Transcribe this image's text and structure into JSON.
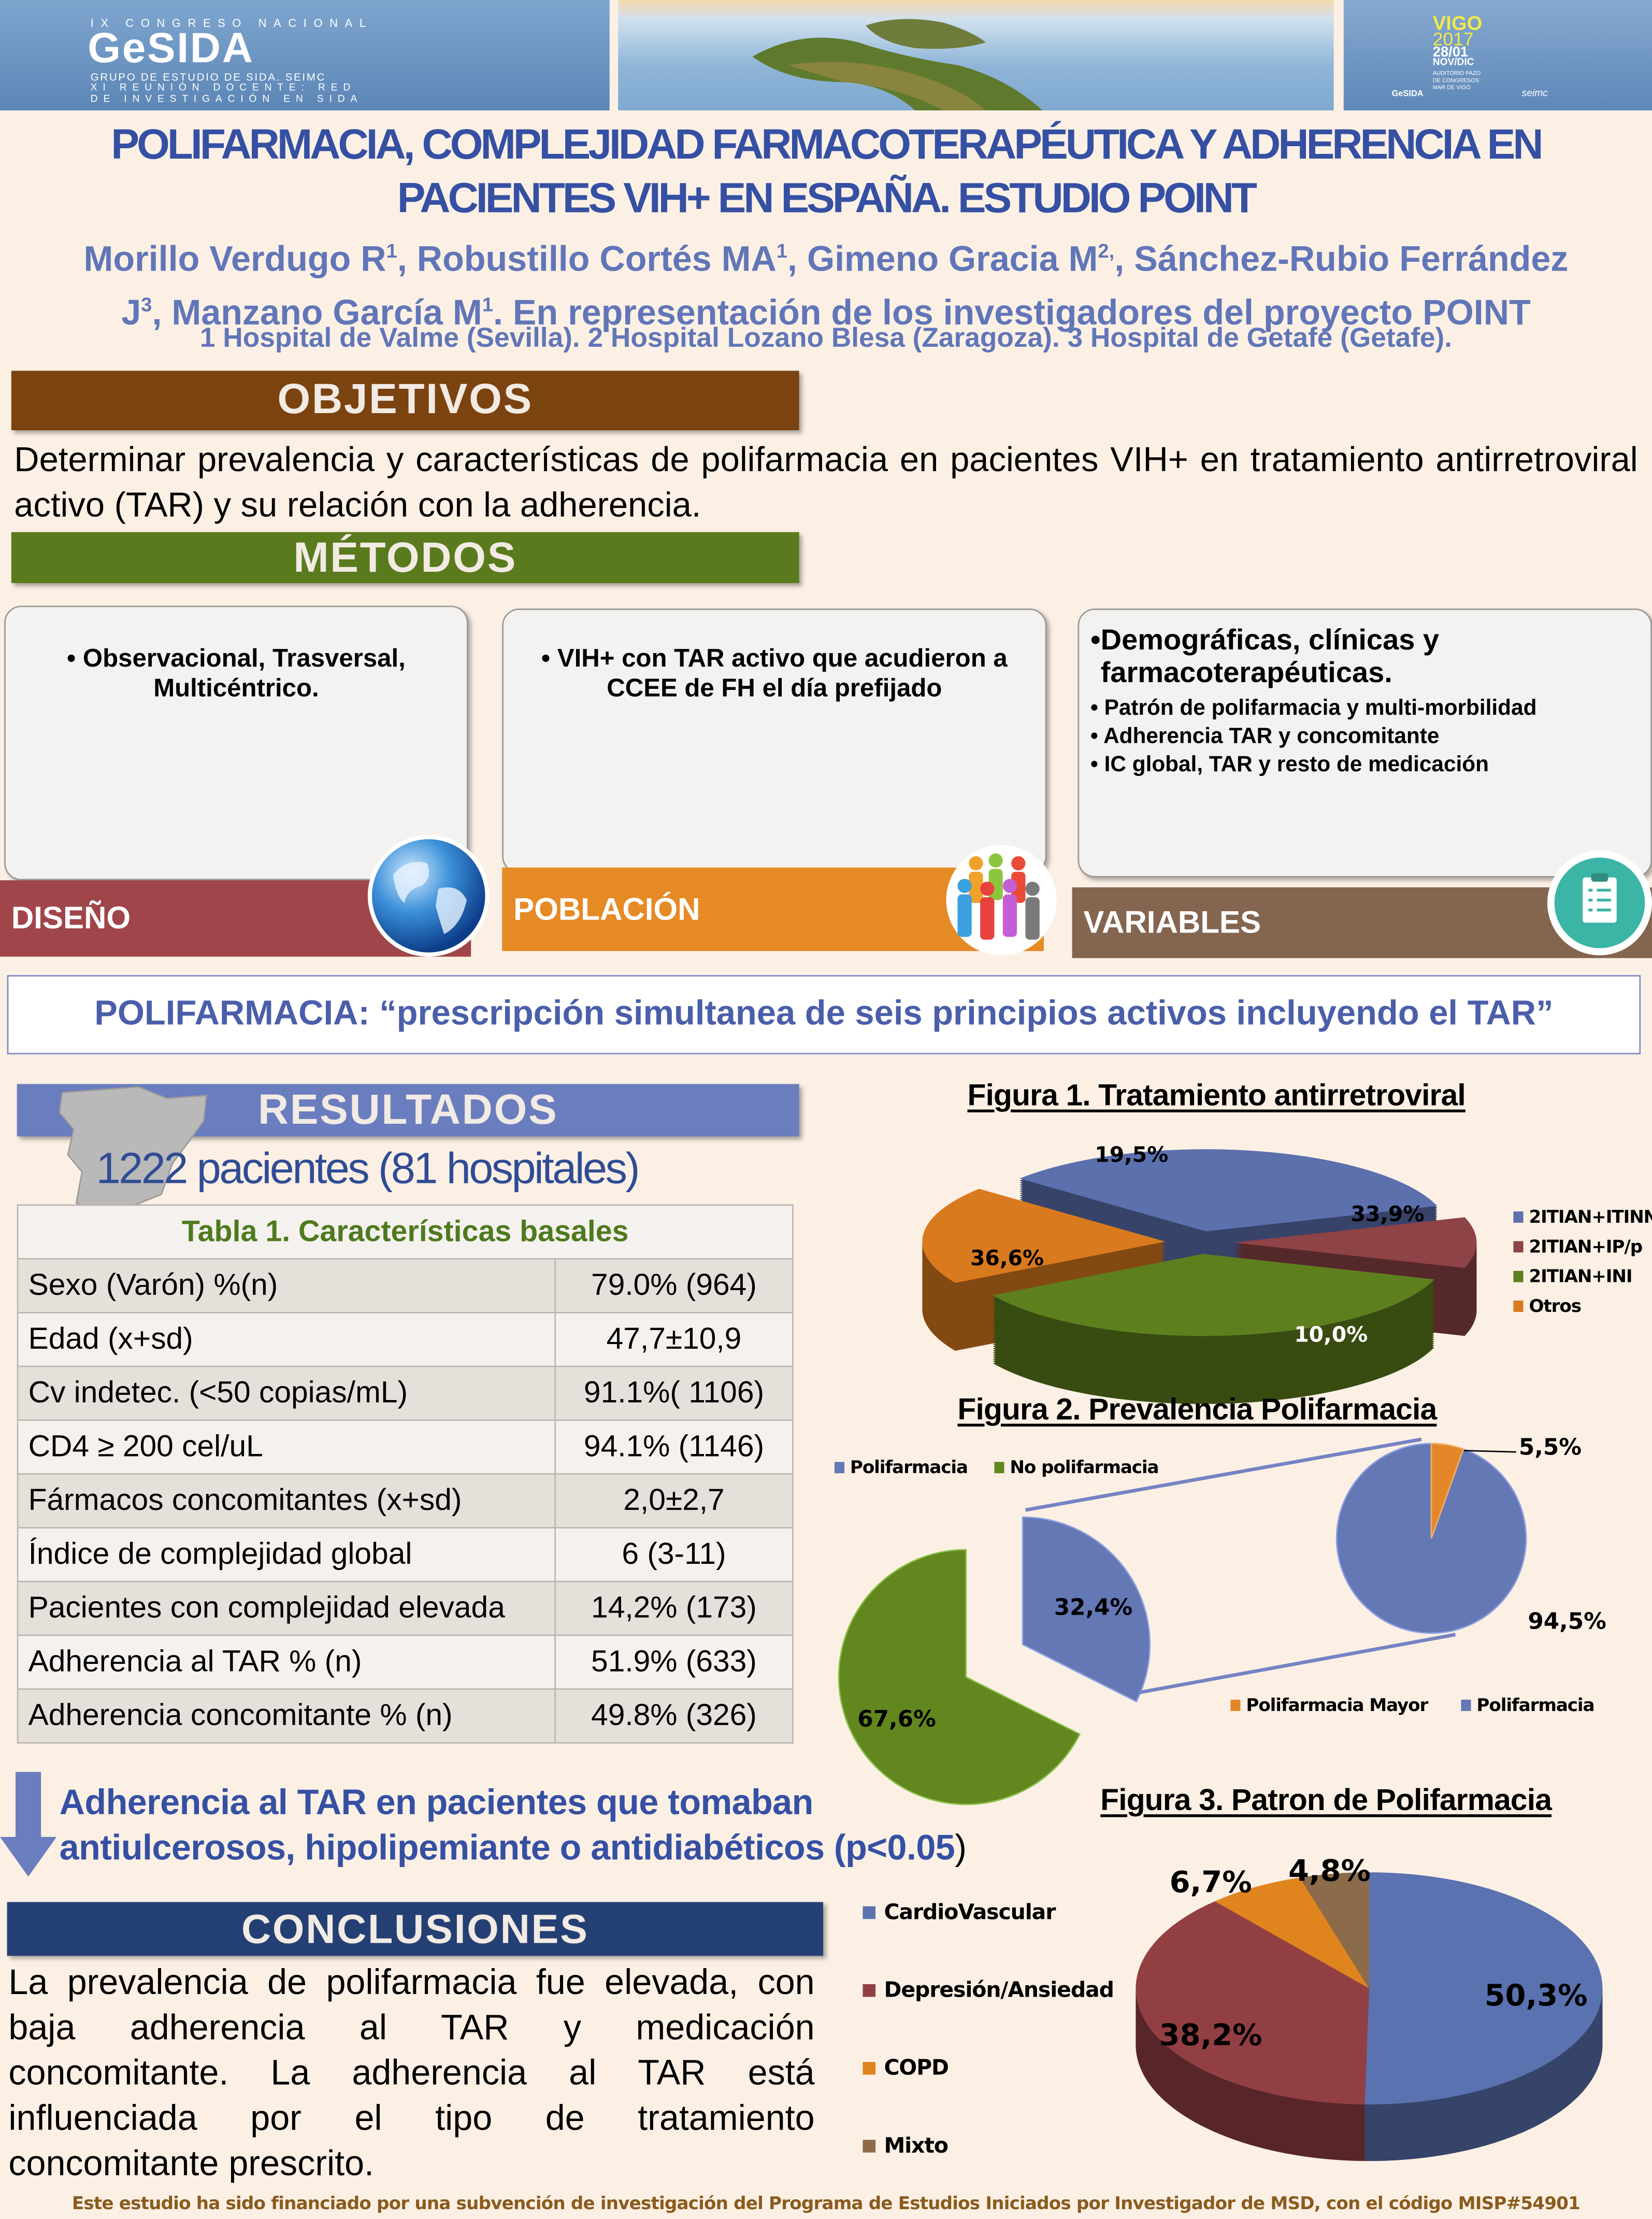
{
  "banner": {
    "left": {
      "line1": "IX CONGRESO NACIONAL",
      "brand": "GeSIDA",
      "line2": "GRUPO DE ESTUDIO DE SIDA. SEIMC",
      "line3": "XI REUNIÓN DOCENTE: RED",
      "line4": "DE INVESTIGACIÓN EN SIDA"
    },
    "right": {
      "city": "VIGO",
      "year": "2017",
      "dates": "28/01",
      "months": "NOV/DIC",
      "venue1": "AUDITORIO PAZO",
      "venue2": "DE CONGRESOS",
      "venue3": "MAR DE VIGO",
      "logo1": "GeSIDA",
      "logo2": "seimc"
    }
  },
  "title": {
    "line1": "POLIFARMACIA, COMPLEJIDAD FARMACOTERAPÉUTICA Y ADHERENCIA EN",
    "line2": "PACIENTES VIH+ EN ESPAÑA. ESTUDIO POINT"
  },
  "authors": {
    "line1": [
      {
        "t": "Morillo Verdugo R"
      },
      {
        "s": "1"
      },
      {
        "t": ", Robustillo Cortés MA"
      },
      {
        "s": "1"
      },
      {
        "t": ", Gimeno Gracia M"
      },
      {
        "s": "2,"
      },
      {
        "t": ", Sánchez-Rubio Ferrández"
      }
    ],
    "line2": [
      {
        "t": "J"
      },
      {
        "s": "3"
      },
      {
        "t": ", Manzano García M"
      },
      {
        "s": "1"
      },
      {
        "t": ". En representación de los investigadores del proyecto POINT"
      }
    ],
    "affiliations": "1 Hospital de Valme (Sevilla). 2 Hospital Lozano Blesa (Zaragoza). 3 Hospital de Getafe (Getafe)."
  },
  "objetivos": {
    "heading": "OBJETIVOS",
    "text": "Determinar prevalencia y características de polifarmacia en pacientes VIH+ en tratamiento antirretroviral activo (TAR) y su relación con la adherencia."
  },
  "metodos": {
    "heading": "MÉTODOS",
    "diseno": {
      "label": "DISEÑO",
      "bullet": "Observacional, Trasversal, Multicéntrico."
    },
    "poblacion": {
      "label": "POBLACIÓN",
      "bullet": "VIH+ con TAR activo que acudieron a CCEE de FH el día prefijado"
    },
    "variables": {
      "label": "VARIABLES",
      "main": "Demográficas, clínicas y farmacoterapéuticas.",
      "items": [
        "Patrón de polifarmacia y multi-morbilidad",
        "Adherencia TAR y concomitante",
        "IC global, TAR y resto de medicación"
      ]
    }
  },
  "definition": "POLIFARMACIA: “prescripción simultanea de seis principios activos incluyendo el TAR”",
  "resultados": {
    "heading": "RESULTADOS",
    "summary": "1222 pacientes (81 hospitales)",
    "table": {
      "title": "Tabla 1. Características basales",
      "rows": [
        [
          "Sexo (Varón) %(n)",
          "79.0% (964)"
        ],
        [
          "Edad (x+sd)",
          "47,7±10,9"
        ],
        [
          "Cv indetec. (<50 copias/mL)",
          "91.1%( 1106)"
        ],
        [
          "CD4 ≥ 200 cel/uL",
          "94.1% (1146)"
        ],
        [
          "Fármacos concomitantes (x+sd)",
          "2,0±2,7"
        ],
        [
          "Índice de complejidad global",
          "6 (3-11)"
        ],
        [
          "Pacientes con complejidad elevada",
          "14,2% (173)"
        ],
        [
          "Adherencia al TAR % (n)",
          "51.9% (633)"
        ],
        [
          "Adherencia concomitante % (n)",
          "49.8% (326)"
        ]
      ]
    },
    "finding_line1": "Adherencia al TAR en pacientes que tomaban",
    "finding_line2": "antiulcerosos, hipolipemiante o antidiabéticos (p<0.05",
    "finding_paren": ")"
  },
  "conclusiones": {
    "heading": "CONCLUSIONES",
    "text": "La prevalencia de polifarmacia fue elevada, con baja adherencia al TAR y medicación concomitante. La adherencia al TAR está influenciada por el tipo de tratamiento concomitante prescrito."
  },
  "footer": "Este estudio ha sido financiado por una subvención de investigación del Programa de Estudios Iniciados por Investigador de MSD, con el código MISP#54901",
  "colors": {
    "title_blue": "#3550A3",
    "objetivos": "#7B4310",
    "metodos": "#5A7A1E",
    "resultados": "#6A7DBE",
    "conclusiones": "#243F73",
    "diseno": "#A0464A",
    "poblacion": "#E68A25",
    "variables": "#846550"
  },
  "chart_data": [
    {
      "type": "pie",
      "style": "3d-exploded",
      "title": "Figura 1. Tratamiento antirretroviral",
      "legend": "right",
      "categories": [
        "2ITIAN+ITINN",
        "2ITIAN+IP/p",
        "2ITIAN+INI",
        "Otros"
      ],
      "values": [
        33.9,
        10.0,
        36.6,
        19.5
      ],
      "labels": [
        "33,9%",
        "10,0%",
        "36,6%",
        "19,5%"
      ],
      "colors": [
        "#5B70AD",
        "#8E4346",
        "#5E7F1E",
        "#D97A1E"
      ]
    },
    {
      "type": "pie",
      "style": "pie-of-pie",
      "title": "Figura 2. Prevalencia Polifarmacia",
      "legend": "top-left",
      "categories": [
        "Polifarmacia",
        "No polifarmacia"
      ],
      "values": [
        32.4,
        67.6
      ],
      "labels": [
        "32,4%",
        "67,6%"
      ],
      "colors": [
        "#6478B6",
        "#62871F"
      ],
      "secondary": {
        "legend": "bottom",
        "categories": [
          "Polifarmacia Mayor",
          "Polifarmacia"
        ],
        "values": [
          5.5,
          94.5
        ],
        "labels": [
          "5,5%",
          "94,5%"
        ],
        "colors": [
          "#E3862A",
          "#6478B6"
        ]
      }
    },
    {
      "type": "pie",
      "style": "3d",
      "title": "Figura 3. Patron de Polifarmacia",
      "legend": "left",
      "categories": [
        "CardioVascular",
        "Depresión/Ansiedad",
        "COPD",
        "Mixto"
      ],
      "values": [
        50.3,
        38.2,
        6.7,
        4.8
      ],
      "labels": [
        "50,3%",
        "38,2%",
        "6,7%",
        "4,8%"
      ],
      "colors": [
        "#5B72B0",
        "#923F44",
        "#E0841E",
        "#8B6B4A"
      ]
    }
  ]
}
